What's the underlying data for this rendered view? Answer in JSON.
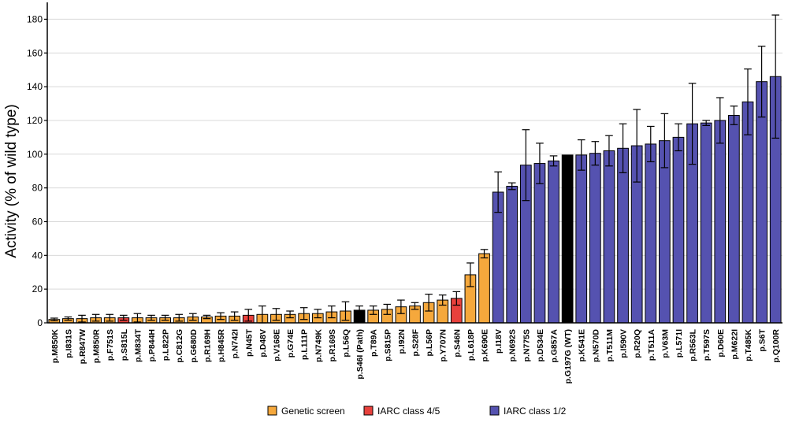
{
  "chart_data": {
    "type": "bar",
    "title": "",
    "xlabel": "",
    "ylabel": "Activity (% of wild type)",
    "ylim": [
      0,
      190
    ],
    "yticks": [
      0,
      20,
      40,
      60,
      80,
      100,
      120,
      140,
      160,
      180
    ],
    "grid": true,
    "legend_position": "bottom",
    "legend": [
      {
        "label": "Genetic screen",
        "color": "#f5a83c"
      },
      {
        "label": "IARC class 4/5",
        "color": "#e8413c"
      },
      {
        "label": "IARC class 1/2",
        "color": "#5552b0"
      }
    ],
    "bars": [
      {
        "label": "p.M850K",
        "value": 2,
        "error": 0.8,
        "group": "Genetic screen"
      },
      {
        "label": "p.I831S",
        "value": 2.5,
        "error": 1,
        "group": "Genetic screen"
      },
      {
        "label": "p.R847W",
        "value": 2.5,
        "error": 2,
        "group": "Genetic screen"
      },
      {
        "label": "p.M850R",
        "value": 3,
        "error": 2,
        "group": "Genetic screen"
      },
      {
        "label": "p.F751S",
        "value": 3,
        "error": 2,
        "group": "Genetic screen"
      },
      {
        "label": "p.S815L",
        "value": 3,
        "error": 1.5,
        "group": "IARC class 4/5"
      },
      {
        "label": "p.M834T",
        "value": 3,
        "error": 2.5,
        "group": "Genetic screen"
      },
      {
        "label": "p.P844H",
        "value": 3,
        "error": 1.5,
        "group": "Genetic screen"
      },
      {
        "label": "p.L822P",
        "value": 3,
        "error": 1.5,
        "group": "Genetic screen"
      },
      {
        "label": "p.C812G",
        "value": 3,
        "error": 2,
        "group": "Genetic screen"
      },
      {
        "label": "p.G680D",
        "value": 3.5,
        "error": 2,
        "group": "Genetic screen"
      },
      {
        "label": "p.R169H",
        "value": 3.5,
        "error": 1,
        "group": "Genetic screen"
      },
      {
        "label": "p.H845R",
        "value": 4,
        "error": 2,
        "group": "Genetic screen"
      },
      {
        "label": "p.N742I",
        "value": 4,
        "error": 2.5,
        "group": "Genetic screen"
      },
      {
        "label": "p.N45T",
        "value": 4.5,
        "error": 3.5,
        "group": "IARC class 4/5"
      },
      {
        "label": "p.D48V",
        "value": 5,
        "error": 5,
        "group": "Genetic screen"
      },
      {
        "label": "p.V168E",
        "value": 5,
        "error": 3.5,
        "group": "Genetic screen"
      },
      {
        "label": "p.G74E",
        "value": 5,
        "error": 2,
        "group": "Genetic screen"
      },
      {
        "label": "p.L111P",
        "value": 5.5,
        "error": 3.5,
        "group": "Genetic screen"
      },
      {
        "label": "p.N749K",
        "value": 5.5,
        "error": 2.5,
        "group": "Genetic screen"
      },
      {
        "label": "p.R169S",
        "value": 6.5,
        "error": 3.5,
        "group": "Genetic screen"
      },
      {
        "label": "p.L56Q",
        "value": 7,
        "error": 5.5,
        "group": "Genetic screen"
      },
      {
        "label": "p.S46I (Path)",
        "value": 7.5,
        "error": 2.5,
        "group": "Path"
      },
      {
        "label": "p.T89A",
        "value": 7.5,
        "error": 2.5,
        "group": "Genetic screen"
      },
      {
        "label": "p.S815P",
        "value": 8,
        "error": 3,
        "group": "Genetic screen"
      },
      {
        "label": "p.I92N",
        "value": 9.5,
        "error": 4,
        "group": "Genetic screen"
      },
      {
        "label": "p.S28F",
        "value": 10,
        "error": 2,
        "group": "Genetic screen"
      },
      {
        "label": "p.L56P",
        "value": 12,
        "error": 5,
        "group": "Genetic screen"
      },
      {
        "label": "p.Y707N",
        "value": 13.5,
        "error": 3,
        "group": "Genetic screen"
      },
      {
        "label": "p.S46N",
        "value": 14.5,
        "error": 4,
        "group": "IARC class 4/5"
      },
      {
        "label": "p.L618P",
        "value": 28.5,
        "error": 7,
        "group": "Genetic screen"
      },
      {
        "label": "p.K690E",
        "value": 41,
        "error": 2.5,
        "group": "Genetic screen"
      },
      {
        "label": "p.I18V",
        "value": 77.5,
        "error": 12,
        "group": "IARC class 1/2"
      },
      {
        "label": "p.N692S",
        "value": 81,
        "error": 2,
        "group": "IARC class 1/2"
      },
      {
        "label": "p.N775S",
        "value": 93.5,
        "error": 21,
        "group": "IARC class 1/2"
      },
      {
        "label": "p.D534E",
        "value": 94.5,
        "error": 12,
        "group": "IARC class 1/2"
      },
      {
        "label": "p.G857A",
        "value": 96,
        "error": 3,
        "group": "IARC class 1/2"
      },
      {
        "label": "p.G197G (WT)",
        "value": 99.5,
        "error": 0,
        "group": "WT"
      },
      {
        "label": "p.K541E",
        "value": 99.5,
        "error": 9,
        "group": "IARC class 1/2"
      },
      {
        "label": "p.N570D",
        "value": 100.5,
        "error": 7,
        "group": "IARC class 1/2"
      },
      {
        "label": "p.T511M",
        "value": 102,
        "error": 9,
        "group": "IARC class 1/2"
      },
      {
        "label": "p.I590V",
        "value": 103.5,
        "error": 14.5,
        "group": "IARC class 1/2"
      },
      {
        "label": "p.R20Q",
        "value": 105,
        "error": 21.5,
        "group": "IARC class 1/2"
      },
      {
        "label": "p.T511A",
        "value": 106,
        "error": 10.5,
        "group": "IARC class 1/2"
      },
      {
        "label": "p.V63M",
        "value": 108,
        "error": 16,
        "group": "IARC class 1/2"
      },
      {
        "label": "p.L571I",
        "value": 110,
        "error": 8,
        "group": "IARC class 1/2"
      },
      {
        "label": "p.R563L",
        "value": 118,
        "error": 24,
        "group": "IARC class 1/2"
      },
      {
        "label": "p.T597S",
        "value": 118.5,
        "error": 1.5,
        "group": "IARC class 1/2"
      },
      {
        "label": "p.D60E",
        "value": 120,
        "error": 13.5,
        "group": "IARC class 1/2"
      },
      {
        "label": "p.M622I",
        "value": 123,
        "error": 5.5,
        "group": "IARC class 1/2"
      },
      {
        "label": "p.T485K",
        "value": 131,
        "error": 19.5,
        "group": "IARC class 1/2"
      },
      {
        "label": "p.S6T",
        "value": 143,
        "error": 21,
        "group": "IARC class 1/2"
      },
      {
        "label": "p.Q100R",
        "value": 146,
        "error": 36.5,
        "group": "IARC class 1/2"
      }
    ],
    "colors": {
      "Genetic screen": "#f5a83c",
      "IARC class 4/5": "#e8413c",
      "IARC class 1/2": "#5552b0",
      "Path": "#000000",
      "WT": "#000000",
      "grid": "#d9d9d9",
      "axis": "#000000",
      "outline": "#000000"
    }
  }
}
